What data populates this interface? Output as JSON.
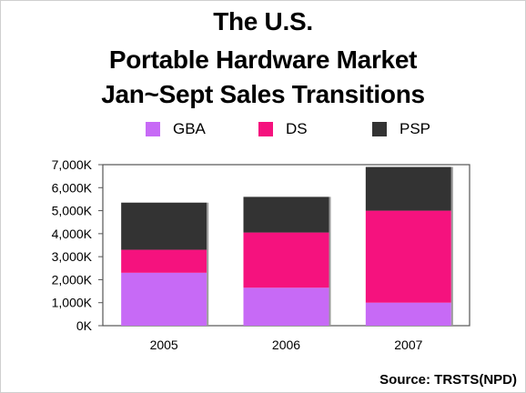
{
  "title_lines": [
    "The U.S.",
    "Portable Hardware Market",
    "Jan~Sept Sales Transitions"
  ],
  "source": "Source: TRSTS(NPD)",
  "colors": {
    "GBA": "#c76af6",
    "DS": "#f5127e",
    "PSP": "#333333"
  },
  "chart_data": {
    "type": "bar",
    "stacked": true,
    "categories": [
      "2005",
      "2006",
      "2007"
    ],
    "series": [
      {
        "name": "GBA",
        "values": [
          2300,
          1650,
          1000
        ]
      },
      {
        "name": "DS",
        "values": [
          1000,
          2400,
          4000
        ]
      },
      {
        "name": "PSP",
        "values": [
          2050,
          1550,
          1900
        ]
      }
    ],
    "ylim": [
      0,
      7000
    ],
    "yticks": [
      "0K",
      "1,000K",
      "2,000K",
      "3,000K",
      "4,000K",
      "5,000K",
      "6,000K",
      "7,000K"
    ],
    "legend_position": "top",
    "grid": false
  }
}
